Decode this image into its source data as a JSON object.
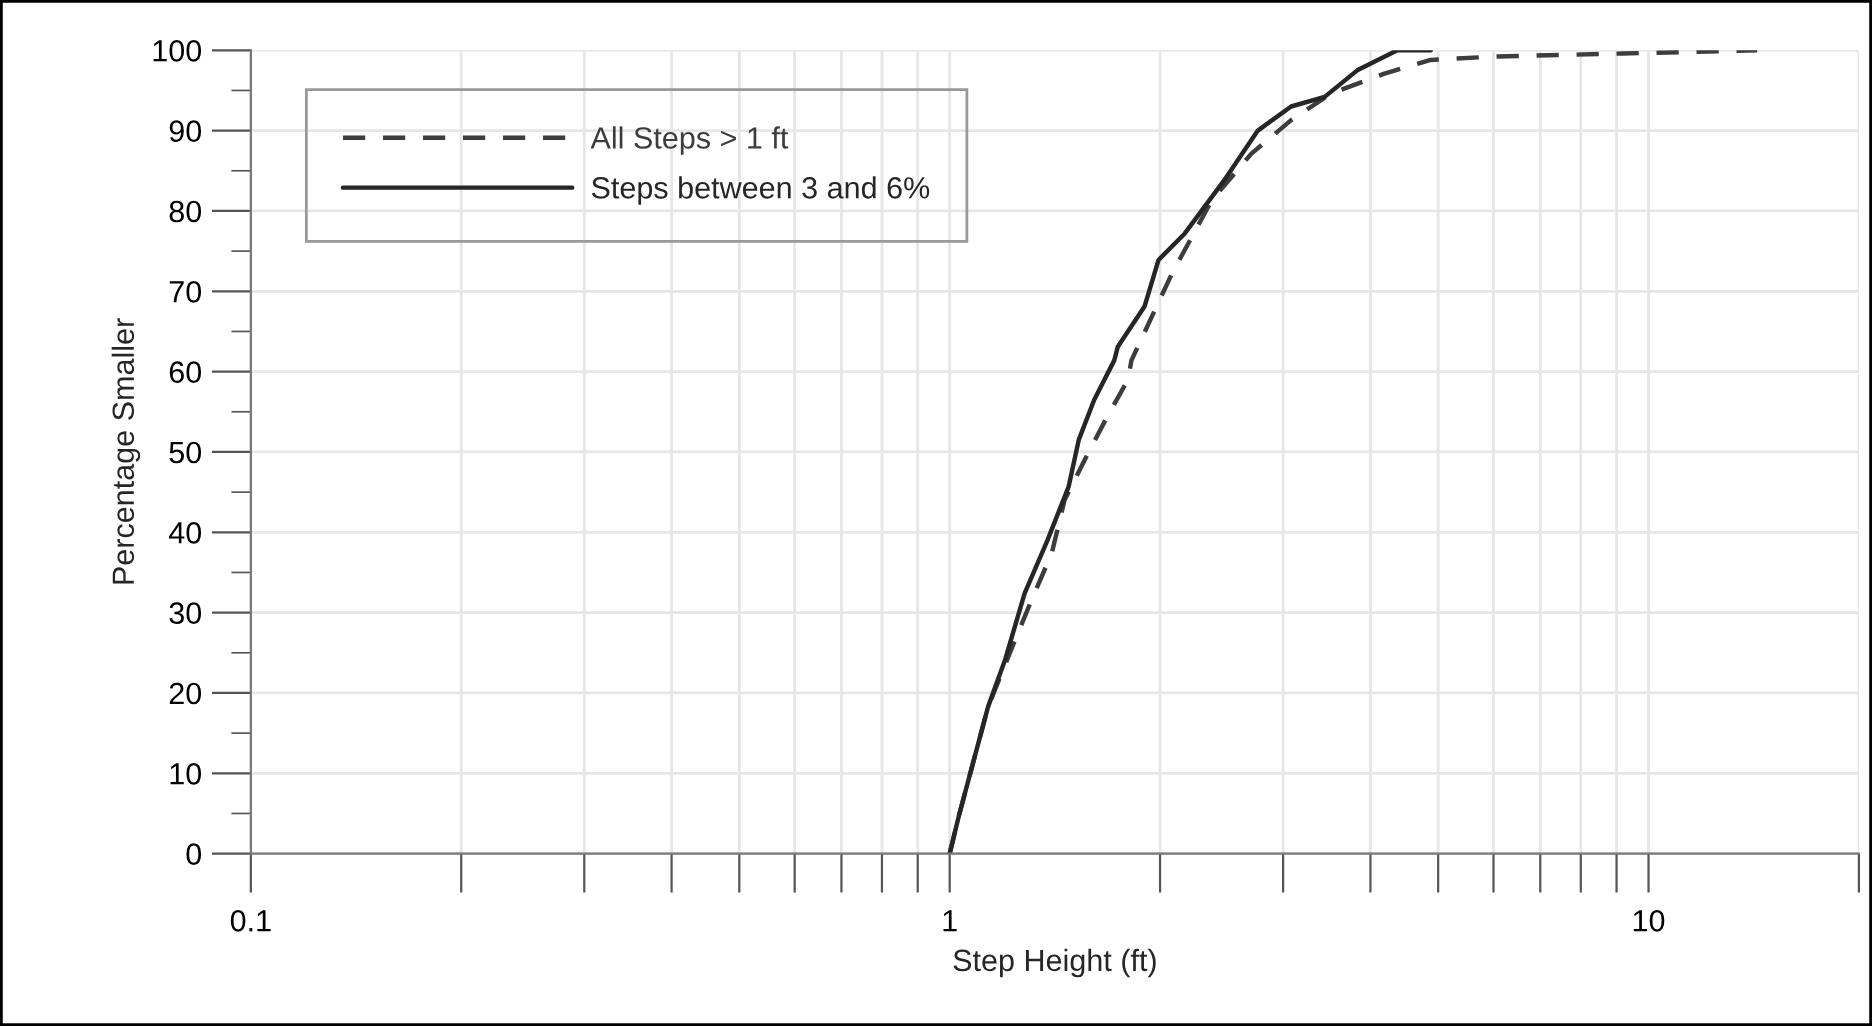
{
  "chart_data": {
    "type": "line",
    "xlabel": "Step Height (ft)",
    "ylabel": "Percentage Smaller",
    "log": "x",
    "grid": true,
    "legend": "top left",
    "xlim": [
      0.1,
      20
    ],
    "xticks": [
      0.1,
      {
        "value": 0.2,
        "label": null
      },
      {
        "value": 0.3,
        "label": null
      },
      {
        "value": 0.4,
        "label": null
      },
      {
        "value": 0.5,
        "label": null
      },
      {
        "value": 0.6,
        "label": null
      },
      {
        "value": 0.7,
        "label": null
      },
      {
        "value": 0.8,
        "label": null
      },
      {
        "value": 0.9,
        "label": null
      },
      1,
      {
        "value": 2,
        "label": null
      },
      {
        "value": 3,
        "label": null
      },
      {
        "value": 4,
        "label": null
      },
      {
        "value": 5,
        "label": null
      },
      {
        "value": 6,
        "label": null
      },
      {
        "value": 7,
        "label": null
      },
      {
        "value": 8,
        "label": null
      },
      {
        "value": 9,
        "label": null
      },
      10,
      {
        "value": 20,
        "label": null
      }
    ],
    "ylim": [
      0,
      100
    ],
    "yticks": [
      0,
      {
        "value": 5,
        "label": null
      },
      10,
      {
        "value": 15,
        "label": null
      },
      20,
      {
        "value": 25,
        "label": null
      },
      30,
      {
        "value": 35,
        "label": null
      },
      40,
      {
        "value": 45,
        "label": null
      },
      50,
      {
        "value": 55,
        "label": null
      },
      60,
      {
        "value": 65,
        "label": null
      },
      70,
      {
        "value": 75,
        "label": null
      },
      80,
      {
        "value": 85,
        "label": null
      },
      90,
      {
        "value": 95,
        "label": null
      },
      100
    ],
    "series": [
      {
        "name": "All Steps > 1 ft",
        "color": "#3d3d3d",
        "line_style": "dashed",
        "x": [
          1,
          1.03,
          1.135,
          1.23,
          1.31,
          1.4,
          1.46,
          1.56,
          1.69,
          1.8,
          1.82,
          2.08,
          2.37,
          2.7,
          3.08,
          3.51,
          4.19,
          4.88,
          5.95,
          9.2,
          14.3
        ],
        "values": [
          0,
          4.6,
          18.3,
          25.8,
          31.6,
          37.4,
          44,
          49,
          54.8,
          59,
          61.4,
          72.2,
          81.3,
          87.1,
          91.3,
          94.6,
          97.1,
          98.8,
          99.2,
          99.6,
          100
        ]
      },
      {
        "name": "Steps between 3 and 6%",
        "color": "#262626",
        "line_style": "solid",
        "x": [
          1,
          1.03,
          1.135,
          1.2,
          1.28,
          1.38,
          1.48,
          1.53,
          1.61,
          1.72,
          1.74,
          1.9,
          1.99,
          2.17,
          2.47,
          2.76,
          3.08,
          3.44,
          3.83,
          4.37,
          4.88
        ],
        "values": [
          0,
          4.6,
          18.3,
          24.1,
          32.4,
          39,
          45.7,
          51.5,
          56.5,
          61.4,
          63.1,
          68.1,
          73.9,
          77.2,
          83.8,
          90,
          93,
          94.2,
          97.5,
          100,
          100
        ]
      }
    ]
  }
}
